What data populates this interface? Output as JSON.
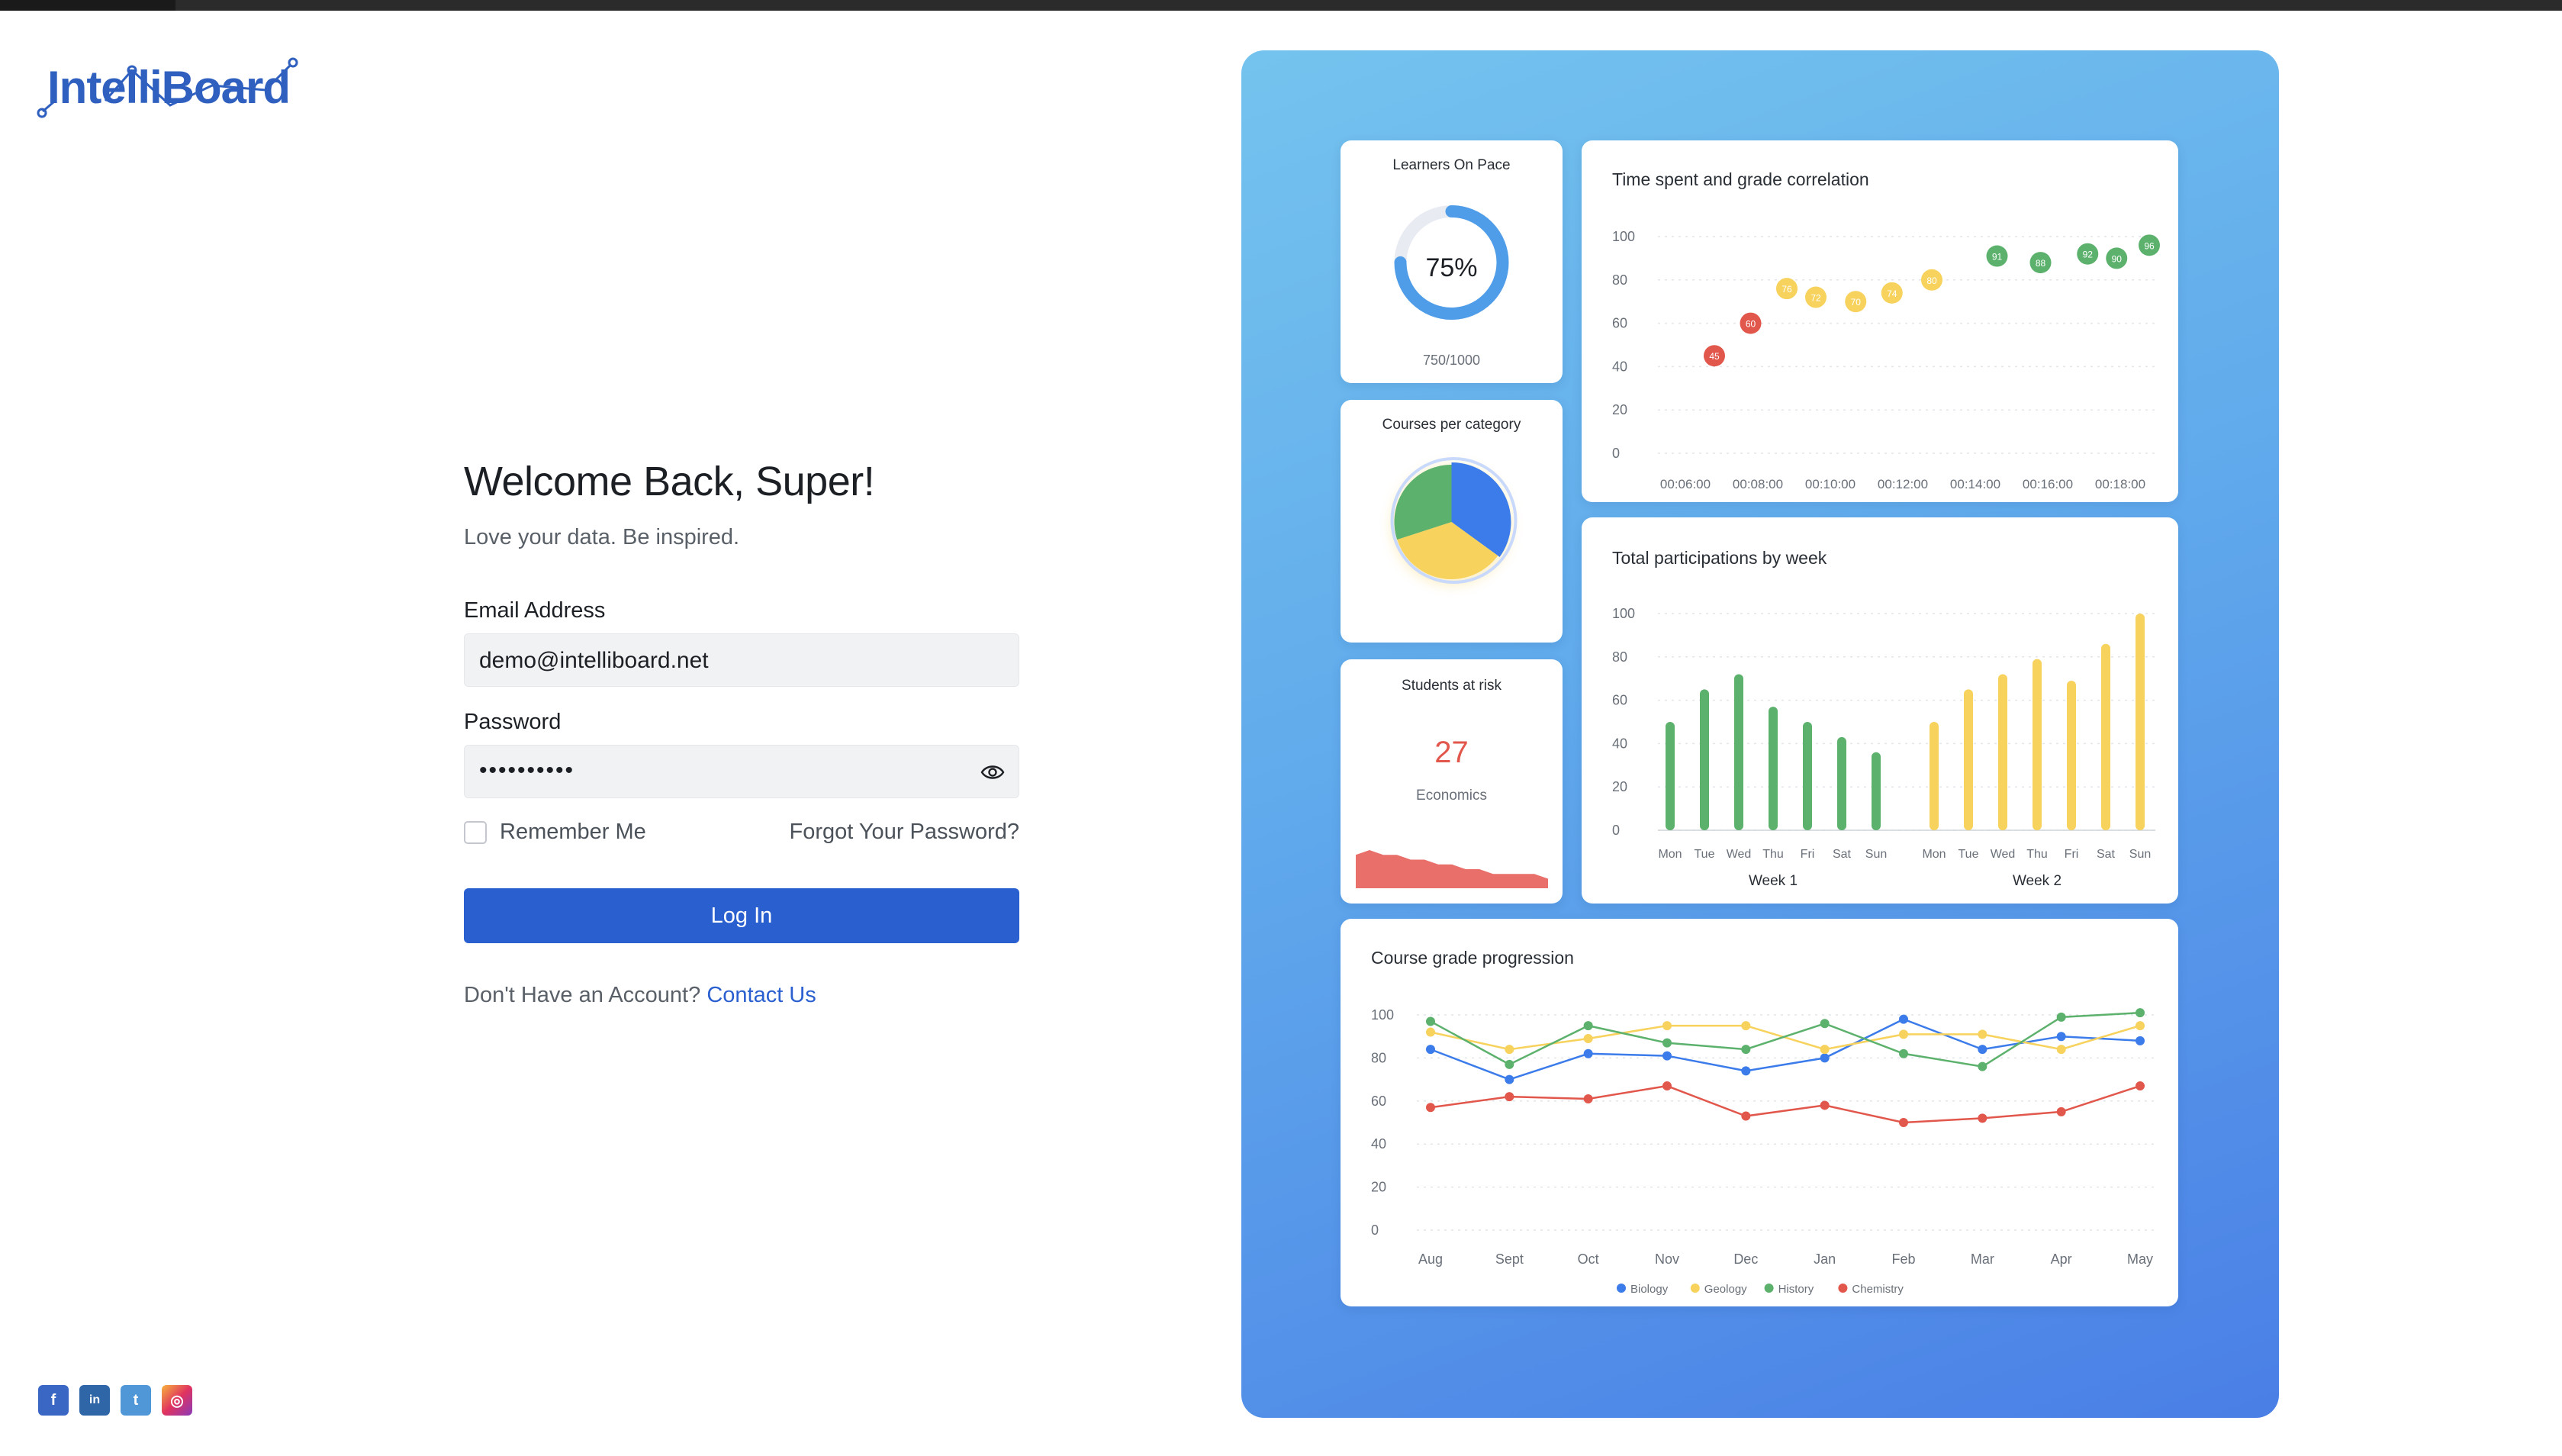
{
  "brand": {
    "name": "IntelliBoard"
  },
  "login": {
    "title": "Welcome Back, Super!",
    "subtitle": "Love your data. Be inspired.",
    "email_label": "Email Address",
    "email_value": "demo@intelliboard.net",
    "password_label": "Password",
    "password_value": "••••••••••",
    "remember_label": "Remember Me",
    "forgot_label": "Forgot Your Password?",
    "login_button": "Log In",
    "signup_prompt": "Don't Have an Account?",
    "signup_link": "Contact Us"
  },
  "socials": [
    {
      "name": "facebook-icon",
      "glyph": "f"
    },
    {
      "name": "linkedin-icon",
      "glyph": "in"
    },
    {
      "name": "twitter-icon",
      "glyph": "t"
    },
    {
      "name": "instagram-icon",
      "glyph": "◎"
    }
  ],
  "colors": {
    "accent": "#2a5fd0",
    "green": "#5cb16c",
    "yellow": "#f7d25c",
    "red": "#e2574c",
    "blue": "#3b7bea"
  },
  "dashboard": {
    "pace": {
      "title": "Learners On Pace",
      "percent_label": "75%",
      "value": 0.75,
      "count": "750/1000"
    },
    "courses": {
      "title": "Courses per category"
    },
    "risk": {
      "title": "Students at risk",
      "value": "27",
      "subject": "Economics"
    }
  },
  "chart_data": [
    {
      "type": "pie",
      "title": "Courses per category",
      "slices": [
        {
          "value": 35,
          "color": "#3b7bea"
        },
        {
          "value": 35,
          "color": "#f7d25c"
        },
        {
          "value": 30,
          "color": "#5cb16c"
        }
      ]
    },
    {
      "type": "area",
      "title": "Students at risk",
      "values": [
        7,
        8,
        7,
        7,
        6,
        6,
        5,
        5,
        4,
        4,
        3,
        3,
        3,
        3,
        2
      ],
      "color": "#e86f6a"
    },
    {
      "type": "scatter",
      "title": "Time spent and grade correlation",
      "x_ticks": [
        "00:06:00",
        "00:08:00",
        "00:10:00",
        "00:12:00",
        "00:14:00",
        "00:16:00",
        "00:18:00"
      ],
      "ylim": [
        0,
        100
      ],
      "y_ticks": [
        0,
        20,
        40,
        60,
        80,
        100
      ],
      "points": [
        {
          "x": 6.8,
          "y": 45,
          "label": "45",
          "color": "#e2574c"
        },
        {
          "x": 7.8,
          "y": 60,
          "label": "60",
          "color": "#e2574c"
        },
        {
          "x": 8.8,
          "y": 76,
          "label": "76",
          "color": "#f7d25c"
        },
        {
          "x": 9.6,
          "y": 72,
          "label": "72",
          "color": "#f7d25c"
        },
        {
          "x": 10.7,
          "y": 70,
          "label": "70",
          "color": "#f7d25c"
        },
        {
          "x": 11.7,
          "y": 74,
          "label": "74",
          "color": "#f7d25c"
        },
        {
          "x": 12.8,
          "y": 80,
          "label": "80",
          "color": "#f7d25c"
        },
        {
          "x": 14.6,
          "y": 91,
          "label": "91",
          "color": "#5cb16c"
        },
        {
          "x": 15.8,
          "y": 88,
          "label": "88",
          "color": "#5cb16c"
        },
        {
          "x": 17.1,
          "y": 92,
          "label": "92",
          "color": "#5cb16c"
        },
        {
          "x": 17.9,
          "y": 90,
          "label": "90",
          "color": "#5cb16c"
        },
        {
          "x": 18.8,
          "y": 96,
          "label": "96",
          "color": "#5cb16c"
        }
      ]
    },
    {
      "type": "bar",
      "title": "Total participations by week",
      "ylim": [
        0,
        100
      ],
      "y_ticks": [
        0,
        20,
        40,
        60,
        80,
        100
      ],
      "groups": [
        {
          "name": "Week 1",
          "color": "#5cb16c",
          "categories": [
            "Mon",
            "Tue",
            "Wed",
            "Thu",
            "Fri",
            "Sat",
            "Sun"
          ],
          "values": [
            50,
            65,
            72,
            57,
            50,
            43,
            36
          ]
        },
        {
          "name": "Week 2",
          "color": "#f7d25c",
          "categories": [
            "Mon",
            "Tue",
            "Wed",
            "Thu",
            "Fri",
            "Sat",
            "Sun"
          ],
          "values": [
            50,
            65,
            72,
            79,
            69,
            86,
            100
          ]
        }
      ]
    },
    {
      "type": "line",
      "title": "Course grade progression",
      "categories": [
        "Aug",
        "Sept",
        "Oct",
        "Nov",
        "Dec",
        "Jan",
        "Feb",
        "Mar",
        "Apr",
        "May"
      ],
      "ylim": [
        0,
        100
      ],
      "y_ticks": [
        0,
        20,
        40,
        60,
        80,
        100
      ],
      "series": [
        {
          "name": "Biology",
          "color": "#3b7bea",
          "values": [
            84,
            70,
            82,
            81,
            74,
            80,
            98,
            84,
            90,
            88
          ]
        },
        {
          "name": "Geology",
          "color": "#f7d25c",
          "values": [
            92,
            84,
            89,
            95,
            95,
            84,
            91,
            91,
            84,
            95
          ]
        },
        {
          "name": "History",
          "color": "#5cb16c",
          "values": [
            97,
            77,
            95,
            87,
            84,
            96,
            82,
            76,
            99,
            101
          ]
        },
        {
          "name": "Chemistry",
          "color": "#e2574c",
          "values": [
            57,
            62,
            61,
            67,
            53,
            58,
            50,
            52,
            55,
            67
          ]
        }
      ]
    }
  ]
}
